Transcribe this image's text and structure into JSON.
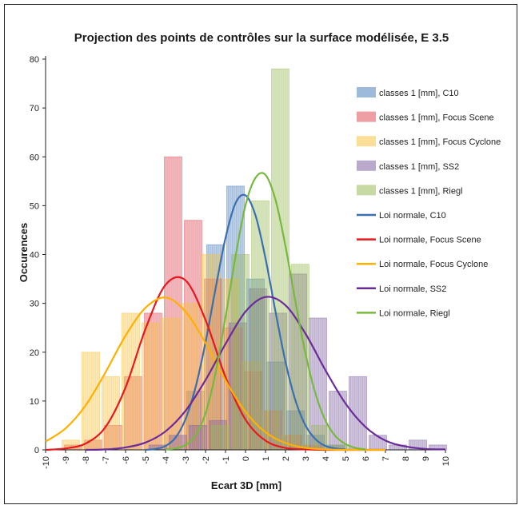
{
  "chart_data": {
    "type": "bar",
    "title": "Projection des points de contrôles sur la surface modélisée, E 3.5",
    "xlabel": "Ecart 3D [mm]",
    "ylabel": "Occurences",
    "xlim": [
      -10,
      10
    ],
    "ylim": [
      0,
      80
    ],
    "x_ticks": [
      "-10",
      "-9",
      "-8",
      "-7",
      "-6",
      "-5",
      "-4",
      "-3",
      "-2",
      "-1",
      "0",
      "1",
      "2",
      "3",
      "4",
      "5",
      "6",
      "7",
      "8",
      "9",
      "10"
    ],
    "y_ticks": [
      "0",
      "10",
      "20",
      "30",
      "40",
      "50",
      "60",
      "70",
      "80"
    ],
    "grid": false,
    "legend_position": "right",
    "bin_centers": [
      -9.5,
      -8.5,
      -7.5,
      -6.5,
      -5.5,
      -4.5,
      -3.5,
      -2.5,
      -1.5,
      -0.5,
      0.5,
      1.5,
      2.5,
      3.5,
      4.5,
      5.5,
      6.5,
      7.5,
      8.5,
      9.5
    ],
    "series": [
      {
        "name": "classes 1 [mm], C10",
        "kind": "bar",
        "color": "#4f81bd",
        "values": [
          0,
          0,
          0,
          0,
          0,
          0,
          0,
          12,
          42,
          54,
          35,
          18,
          8,
          3,
          1,
          0,
          0,
          0,
          0,
          0
        ]
      },
      {
        "name": "classes 1 [mm], Focus Scene",
        "kind": "bar",
        "color": "#e0505a",
        "values": [
          0,
          1,
          2,
          5,
          15,
          28,
          60,
          47,
          35,
          25,
          16,
          8,
          3,
          1,
          0,
          0,
          0,
          0,
          0,
          0
        ]
      },
      {
        "name": "classes 1 [mm], Focus Cyclone",
        "kind": "bar",
        "color": "#f7c242",
        "values": [
          0,
          2,
          20,
          15,
          28,
          26,
          27,
          30,
          40,
          35,
          18,
          8,
          3,
          1,
          0,
          0,
          0,
          0,
          0,
          0
        ]
      },
      {
        "name": "classes 1 [mm], SS2",
        "kind": "bar",
        "color": "#8064a2",
        "values": [
          0,
          0,
          0,
          0,
          0,
          1,
          3,
          5,
          6,
          26,
          33,
          28,
          36,
          27,
          12,
          15,
          3,
          1,
          2,
          1
        ]
      },
      {
        "name": "classes 1 [mm], Riegl",
        "kind": "bar",
        "color": "#9bbb59",
        "values": [
          0,
          0,
          0,
          0,
          0,
          0,
          0,
          0,
          5,
          40,
          51,
          78,
          38,
          5,
          1,
          0,
          0,
          0,
          0,
          0
        ]
      },
      {
        "name": "Loi normale, C10",
        "kind": "line",
        "color": "#3a6fb0",
        "x": [
          -5,
          -4.5,
          -4,
          -3.5,
          -3,
          -2.5,
          -2,
          -1.5,
          -1,
          -0.5,
          0,
          0.5,
          1,
          1.5,
          2,
          2.5,
          3,
          3.5,
          4,
          4.5,
          5
        ],
        "values": [
          0,
          0.2,
          0.8,
          2.5,
          6.3,
          12.8,
          22,
          33,
          43.4,
          50.5,
          52.1,
          48,
          39.2,
          28.3,
          18,
          10.1,
          5,
          2.2,
          0.8,
          0.3,
          0.1
        ]
      },
      {
        "name": "Loi normale, Focus Scene",
        "kind": "line",
        "color": "#e8181e",
        "x": [
          -10,
          -9,
          -8,
          -7,
          -6,
          -5,
          -4,
          -3,
          -2,
          -1,
          0,
          1,
          2,
          3,
          4,
          5,
          6,
          7
        ],
        "values": [
          0,
          0.3,
          1.3,
          4.7,
          12.8,
          24.8,
          33.8,
          34.7,
          26.6,
          14.9,
          6.2,
          1.9,
          0.4,
          0.1,
          0,
          0,
          0,
          0
        ]
      },
      {
        "name": "Loi normale, Focus Cyclone",
        "kind": "line",
        "color": "#ffb000",
        "x": [
          -10,
          -9,
          -8,
          -7,
          -6,
          -5,
          -4,
          -3,
          -2,
          -1,
          0,
          1,
          2,
          3,
          4,
          5,
          6,
          7
        ],
        "values": [
          1.7,
          4.4,
          9.1,
          15.9,
          23.4,
          29.1,
          31.2,
          28.3,
          21.9,
          14.2,
          7.8,
          3.6,
          1.4,
          0.4,
          0.1,
          0,
          0,
          0
        ]
      },
      {
        "name": "Loi normale, SS2",
        "kind": "line",
        "color": "#6a2c9a",
        "x": [
          -8,
          -7,
          -6,
          -5,
          -4,
          -3,
          -2,
          -1,
          0,
          1,
          2,
          3,
          4,
          5,
          6,
          7,
          8,
          9,
          10
        ],
        "values": [
          0,
          0.1,
          0.5,
          1.5,
          3.8,
          8,
          14.3,
          21.7,
          28.3,
          31.3,
          29.6,
          23.8,
          16.3,
          9.5,
          4.7,
          1.9,
          0.7,
          0.2,
          0.1
        ]
      },
      {
        "name": "Loi normale, Riegl",
        "kind": "line",
        "color": "#77b93d",
        "x": [
          -4,
          -3.5,
          -3,
          -2.5,
          -2,
          -1.5,
          -1,
          -0.5,
          0,
          0.5,
          1,
          1.5,
          2,
          2.5,
          3,
          3.5,
          4,
          4.5,
          5,
          5.5,
          6
        ],
        "values": [
          0.1,
          0.3,
          1,
          3,
          7.5,
          15.7,
          27.2,
          39.6,
          50.1,
          55.7,
          56.3,
          51.2,
          41.7,
          30.3,
          19.7,
          11.5,
          6,
          2.8,
          1.2,
          0.4,
          0.1
        ]
      }
    ]
  }
}
